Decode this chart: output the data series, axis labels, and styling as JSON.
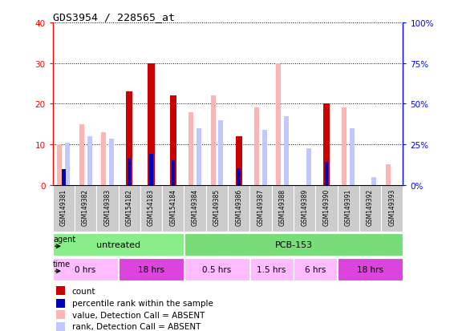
{
  "title": "GDS3954 / 228565_at",
  "samples": [
    "GSM149381",
    "GSM149382",
    "GSM149383",
    "GSM154182",
    "GSM154183",
    "GSM154184",
    "GSM149384",
    "GSM149385",
    "GSM149386",
    "GSM149387",
    "GSM149388",
    "GSM149389",
    "GSM149390",
    "GSM149391",
    "GSM149392",
    "GSM149393"
  ],
  "count": [
    0,
    0,
    0,
    23,
    30,
    22,
    0,
    0,
    12,
    0,
    0,
    0,
    20,
    0,
    0,
    0
  ],
  "percentile_rank": [
    10,
    0,
    0,
    16,
    19,
    15,
    0,
    0,
    10.5,
    0,
    0,
    0,
    14,
    0,
    0,
    0
  ],
  "value_absent": [
    10,
    15,
    13,
    0,
    0,
    0,
    18,
    22,
    0,
    19,
    30,
    0,
    0,
    19,
    0,
    5
  ],
  "rank_absent": [
    10.5,
    12,
    11.5,
    0,
    0,
    0,
    14,
    16,
    0,
    13.5,
    17,
    9,
    0,
    14,
    2,
    0
  ],
  "count_color": "#cc0000",
  "percentile_color": "#0000bb",
  "value_absent_color": "#ffb3b3",
  "rank_absent_color": "#c0c8ff",
  "ylim_left": [
    0,
    40
  ],
  "ylim_right": [
    0,
    100
  ],
  "yticks_left": [
    0,
    10,
    20,
    30,
    40
  ],
  "ytick_labels_left": [
    "0",
    "10",
    "20",
    "30",
    "40"
  ],
  "yticks_right": [
    0,
    25,
    50,
    75,
    100
  ],
  "ytick_labels_right": [
    "0%",
    "25%",
    "50%",
    "75%",
    "100%"
  ],
  "agent_groups": [
    {
      "label": "untreated",
      "start": 0,
      "end": 6,
      "color": "#88ee88"
    },
    {
      "label": "PCB-153",
      "start": 6,
      "end": 16,
      "color": "#77dd77"
    }
  ],
  "time_groups": [
    {
      "label": "0 hrs",
      "start": 0,
      "end": 3,
      "color": "#ffbbff"
    },
    {
      "label": "18 hrs",
      "start": 3,
      "end": 6,
      "color": "#dd44dd"
    },
    {
      "label": "0.5 hrs",
      "start": 6,
      "end": 9,
      "color": "#ffbbff"
    },
    {
      "label": "1.5 hrs",
      "start": 9,
      "end": 11,
      "color": "#ffbbff"
    },
    {
      "label": "6 hrs",
      "start": 11,
      "end": 13,
      "color": "#ffbbff"
    },
    {
      "label": "18 hrs",
      "start": 13,
      "end": 16,
      "color": "#dd44dd"
    }
  ],
  "legend_items": [
    {
      "label": "count",
      "color": "#cc0000"
    },
    {
      "label": "percentile rank within the sample",
      "color": "#0000bb"
    },
    {
      "label": "value, Detection Call = ABSENT",
      "color": "#ffb3b3"
    },
    {
      "label": "rank, Detection Call = ABSENT",
      "color": "#c0c8ff"
    }
  ]
}
